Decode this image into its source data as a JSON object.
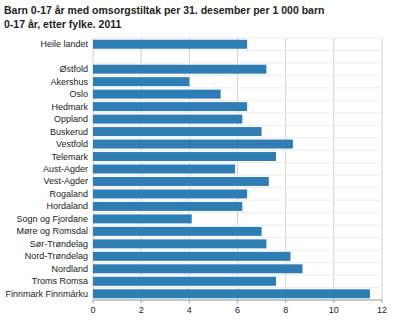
{
  "chart_data": {
    "type": "bar",
    "orientation": "horizontal",
    "title": "Barn 0-17 år med omsorgstiltak per 31. desember per 1 000 barn",
    "subtitle": "0-17 år, etter fylke. 2011",
    "categories": [
      "Heile landet",
      null,
      "Østfold",
      "Akershus",
      "Oslo",
      "Hedmark",
      "Oppland",
      "Buskerud",
      "Vestfold",
      "Telemark",
      "Aust-Agder",
      "Vest-Agder",
      "Rogaland",
      "Hordaland",
      "Sogn og Fjordane",
      "Møre og Romsdal",
      "Sør-Trøndelag",
      "Nord-Trøndelag",
      "Nordland",
      "Troms Romsa",
      "Finnmark Finnmárku"
    ],
    "values": [
      6.4,
      null,
      7.2,
      4.0,
      5.3,
      6.4,
      6.2,
      7.0,
      8.3,
      7.6,
      5.9,
      7.3,
      6.4,
      6.2,
      4.1,
      7.0,
      7.2,
      8.2,
      8.7,
      7.6,
      11.5
    ],
    "color": "#2e7eb5",
    "xlim": [
      0,
      12
    ],
    "xticks": [
      0,
      2,
      4,
      6,
      8,
      10,
      12
    ],
    "grid": true
  }
}
